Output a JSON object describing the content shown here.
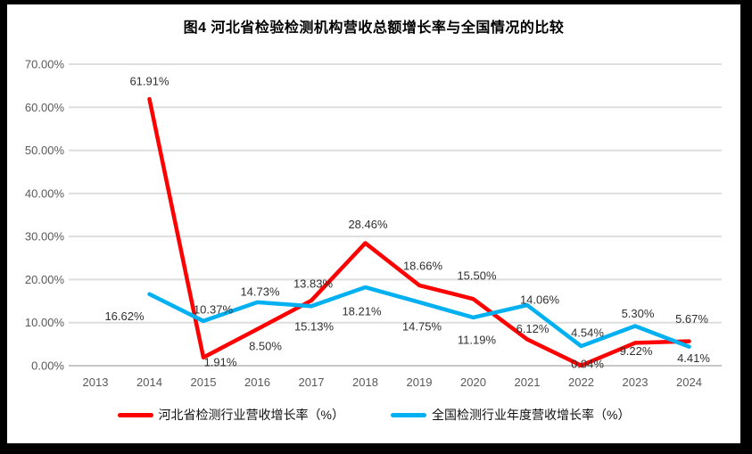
{
  "title": "图4 河北省检验检测机构营收总额增长率与全国情况的比较",
  "frame": {
    "border_color": "#000000",
    "background": "#ffffff"
  },
  "colors": {
    "hebei_series": "#FF0000",
    "national_series": "#00B0F0",
    "gridline": "#DEDEDE",
    "axis_line": "#C6C6C6",
    "tick_text": "#595959",
    "label_text": "#303030"
  },
  "legend": {
    "items": [
      {
        "label": "河北省检测行业营收增长率（%）",
        "color": "#FF0000"
      },
      {
        "label": "全国检测行业年度营收增长率（%）",
        "color": "#00B0F0"
      }
    ]
  },
  "chart_data": {
    "type": "line",
    "title": "图4 河北省检验检测机构营收总额增长率与全国情况的比较",
    "categories": [
      "2013",
      "2014",
      "2015",
      "2016",
      "2017",
      "2018",
      "2019",
      "2020",
      "2021",
      "2022",
      "2023",
      "2024"
    ],
    "xlabel": "",
    "ylabel": "",
    "y_axis": {
      "min": 0,
      "max": 70,
      "step": 10,
      "ticks": [
        "0.00%",
        "10.00%",
        "20.00%",
        "30.00%",
        "40.00%",
        "50.00%",
        "60.00%",
        "70.00%"
      ]
    },
    "grid": true,
    "legend_position": "bottom",
    "series": [
      {
        "name": "河北省检测行业营收增长率（%）",
        "key": "hebei",
        "color": "#FF0000",
        "values": [
          null,
          61.91,
          1.91,
          8.5,
          15.13,
          28.46,
          18.66,
          15.5,
          6.12,
          0.04,
          5.3,
          5.67
        ],
        "labels": [
          null,
          "61.91%",
          "1.91%",
          "8.50%",
          "15.13%",
          "28.46%",
          "18.66%",
          "15.50%",
          "6.12%",
          "0.04%",
          "5.30%",
          "5.67%"
        ],
        "label_offsets": [
          null,
          [
            0,
            -20
          ],
          [
            19,
            5
          ],
          [
            9,
            19
          ],
          [
            3,
            29
          ],
          [
            3,
            -21
          ],
          [
            4,
            -22
          ],
          [
            4,
            -26
          ],
          [
            6,
            -12
          ],
          [
            7,
            -2
          ],
          [
            3,
            -33
          ],
          [
            3,
            -25
          ]
        ]
      },
      {
        "name": "全国检测行业年度营收增长率（%）",
        "key": "national",
        "color": "#00B0F0",
        "values": [
          null,
          16.62,
          10.37,
          14.73,
          13.83,
          18.21,
          14.75,
          11.19,
          14.06,
          4.54,
          9.22,
          4.41
        ],
        "labels": [
          null,
          "16.62%",
          "10.37%",
          "14.73%",
          "13.83%",
          "18.21%",
          "14.75%",
          "11.19%",
          "14.06%",
          "4.54%",
          "9.22%",
          "4.41%"
        ],
        "label_offsets": [
          null,
          [
            -28,
            25
          ],
          [
            11,
            -13
          ],
          [
            3,
            -12
          ],
          [
            2,
            -25
          ],
          [
            -4,
            27
          ],
          [
            3,
            27
          ],
          [
            4,
            25
          ],
          [
            14,
            -6
          ],
          [
            7,
            -15
          ],
          [
            1,
            28
          ],
          [
            5,
            13
          ]
        ]
      }
    ]
  }
}
